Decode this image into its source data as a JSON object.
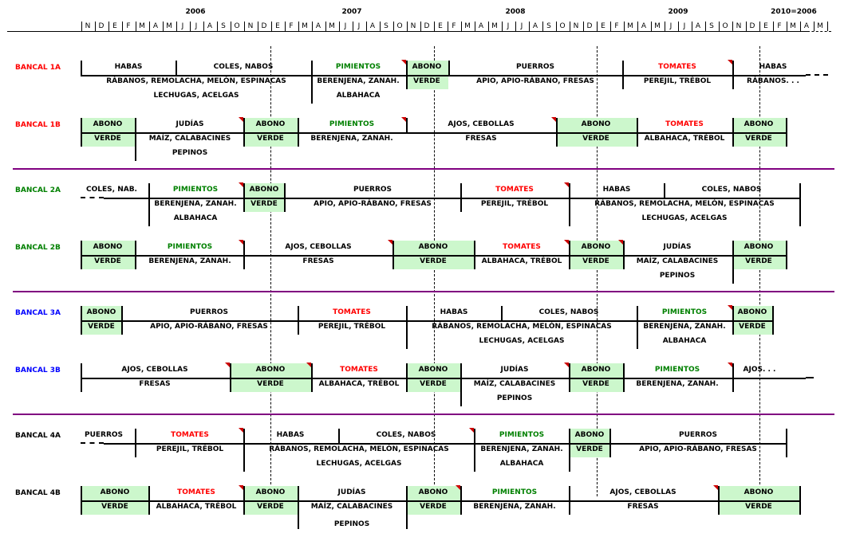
{
  "years": [
    "2006",
    "2007",
    "2008",
    "2009",
    "2010=2006"
  ],
  "months": [
    "N",
    "D",
    "E",
    "F",
    "M",
    "A",
    "M",
    "J",
    "J",
    "A",
    "S",
    "O",
    "N",
    "D",
    "E",
    "F",
    "M",
    "A",
    "M",
    "J",
    "J",
    "A",
    "S",
    "O",
    "N",
    "D",
    "E",
    "F",
    "M",
    "A",
    "M",
    "J",
    "J",
    "A",
    "S",
    "O",
    "N",
    "D",
    "E",
    "F",
    "M",
    "A",
    "M",
    "J",
    "J",
    "A",
    "S",
    "O",
    "N",
    "D",
    "E",
    "F",
    "M",
    "A",
    "M"
  ],
  "colors": {
    "label_1": "#ff0000",
    "label_2": "#008000",
    "label_3": "#0000ff",
    "label_4": "#000000",
    "tomatoes": "#ff0000",
    "peppers": "#008000",
    "green_manure": "#ccf7cc",
    "separator": "#800080"
  },
  "rows": [
    {
      "label": "BANCAL 1A",
      "texts": [
        "HABAS",
        "COLES, NABOS",
        "PIMIENTOS",
        "ABONO",
        "PUERROS",
        "TOMATES",
        "HABAS",
        "RÁBANOS, REMOLACHA, MELÓN, ESPINACAS",
        "BERENJENA, ZANAH.",
        "VERDE",
        "APIO, APIO-RÁBANO, FRESAS",
        "PEREJIL, TRÉBOL",
        "RÁBANOS. . .",
        "LECHUGAS, ACELGAS",
        "ALBAHACA"
      ]
    },
    {
      "label": "BANCAL 1B",
      "texts": [
        "ABONO",
        "JUDÍAS",
        "ABONO",
        "PIMIENTOS",
        "AJOS, CEBOLLAS",
        "ABONO",
        "TOMATES",
        "ABONO",
        "VERDE",
        "MAÍZ, CALABACINES",
        "VERDE",
        "BERENJENA, ZANAH.",
        "FRESAS",
        "VERDE",
        "ALBAHACA, TRÉBOL",
        "VERDE",
        "PEPINOS"
      ]
    },
    {
      "label": "BANCAL 2A",
      "texts": [
        "COLES, NAB.",
        "PIMIENTOS",
        "ABONO",
        "PUERROS",
        "TOMATES",
        "HABAS",
        "COLES, NABOS",
        "BERENJENA, ZANAH.",
        "VERDE",
        "APIO, APIO-RÁBANO, FRESAS",
        "PEREJIL, TRÉBOL",
        "RÁBANOS, REMOLACHA, MELÓN, ESPINACAS",
        "ALBAHACA",
        "LECHUGAS, ACELGAS"
      ]
    },
    {
      "label": "BANCAL 2B",
      "texts": [
        "ABONO",
        "PIMIENTOS",
        "AJOS, CEBOLLAS",
        "ABONO",
        "TOMATES",
        "ABONO",
        "JUDÍAS",
        "ABONO",
        "VERDE",
        "BERENJENA, ZANAH.",
        "FRESAS",
        "VERDE",
        "ALBAHACA, TRÉBOL",
        "VERDE",
        "MAÍZ, CALABACINES",
        "VERDE",
        "PEPINOS"
      ]
    },
    {
      "label": "BANCAL 3A",
      "texts": [
        "ABONO",
        "PUERROS",
        "TOMATES",
        "HABAS",
        "COLES, NABOS",
        "PIMIENTOS",
        "ABONO",
        "VERDE",
        "APIO, APIO-RÁBANO, FRESAS",
        "PEREJIL, TRÉBOL",
        "RÁBANOS, REMOLACHA, MELÓN, ESPINACAS",
        "BERENJENA, ZANAH.",
        "VERDE",
        "LECHUGAS, ACELGAS",
        "ALBAHACA"
      ]
    },
    {
      "label": "BANCAL 3B",
      "texts": [
        "AJOS, CEBOLLAS",
        "ABONO",
        "TOMATES",
        "ABONO",
        "JUDÍAS",
        "ABONO",
        "PIMIENTOS",
        "AJOS. . .",
        "FRESAS",
        "VERDE",
        "ALBAHACA, TRÉBOL",
        "VERDE",
        "MAÍZ, CALABACINES",
        "VERDE",
        "BERENJENA, ZANAH.",
        "PEPINOS"
      ]
    },
    {
      "label": "BANCAL 4A",
      "texts": [
        "PUERROS",
        "TOMATES",
        "HABAS",
        "COLES, NABOS",
        "PIMIENTOS",
        "ABONO",
        "PUERROS",
        "PEREJIL, TRÉBOL",
        "RÁBANOS, REMOLACHA, MELÓN, ESPINACAS",
        "BERENJENA, ZANAH.",
        "VERDE",
        "APIO, APIO-RÁBANO, FRESAS",
        "LECHUGAS, ACELGAS",
        "ALBAHACA"
      ]
    },
    {
      "label": "BANCAL 4B",
      "texts": [
        "ABONO",
        "TOMATES",
        "ABONO",
        "JUDÍAS",
        "ABONO",
        "PIMIENTOS",
        "AJOS, CEBOLLAS",
        "ABONO",
        "VERDE",
        "ALBAHACA, TRÉBOL",
        "VERDE",
        "MAÍZ, CALABACINES",
        "VERDE",
        "BERENJENA, ZANAH.",
        "FRESAS",
        "VERDE",
        "PEPINOS"
      ]
    }
  ]
}
